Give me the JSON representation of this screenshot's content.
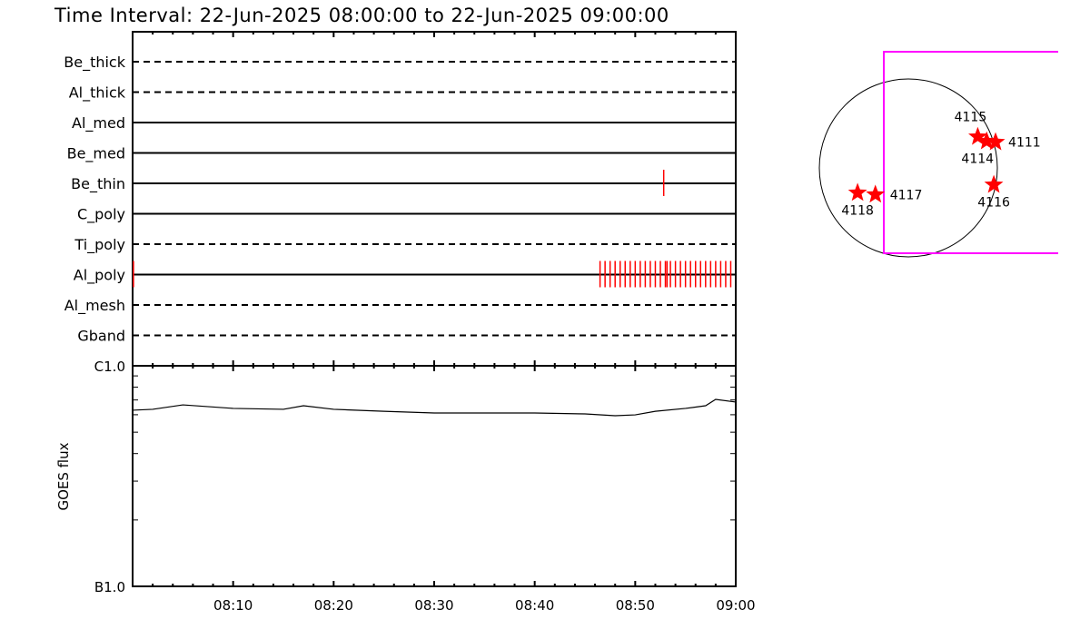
{
  "chart_data": [
    {
      "type": "timeline",
      "title": "Time Interval: 22-Jun-2025 08:00:00 to 22-Jun-2025 09:00:00",
      "rows": [
        {
          "name": "Be_thick",
          "style": "dashed",
          "events": []
        },
        {
          "name": "Al_thick",
          "style": "dashed",
          "events": []
        },
        {
          "name": "Al_med",
          "style": "solid",
          "events": []
        },
        {
          "name": "Be_med",
          "style": "solid",
          "events": []
        },
        {
          "name": "Be_thin",
          "style": "solid",
          "events": [
            "08:52:50"
          ]
        },
        {
          "name": "C_poly",
          "style": "solid",
          "events": []
        },
        {
          "name": "Ti_poly",
          "style": "dashed",
          "events": []
        },
        {
          "name": "Al_poly",
          "style": "solid",
          "events": [
            "08:00:05",
            "08:46:30",
            "08:47:00",
            "08:47:30",
            "08:48:00",
            "08:48:30",
            "08:49:00",
            "08:49:30",
            "08:50:00",
            "08:50:30",
            "08:51:00",
            "08:51:30",
            "08:52:00",
            "08:52:30",
            "08:53:00",
            "08:53:10",
            "08:53:30",
            "08:54:00",
            "08:54:30",
            "08:55:00",
            "08:55:30",
            "08:56:00",
            "08:56:30",
            "08:57:00",
            "08:57:30",
            "08:58:00",
            "08:58:30",
            "08:59:00",
            "08:59:30"
          ]
        },
        {
          "name": "Al_mesh",
          "style": "dashed",
          "events": []
        },
        {
          "name": "Gband",
          "style": "dashed",
          "events": []
        }
      ],
      "event_color": "#ff0000",
      "xlim": [
        "08:00",
        "09:00"
      ]
    },
    {
      "type": "line",
      "ylabel": "GOES flux",
      "yscale": "log",
      "ylim": [
        1e-07,
        1e-06
      ],
      "ytick_labels": [
        "B1.0",
        "C1.0"
      ],
      "xlim": [
        "08:00",
        "09:00"
      ],
      "xtick_labels": [
        "08:10",
        "08:20",
        "08:30",
        "08:40",
        "08:50",
        "09:00"
      ],
      "x": [
        "08:00",
        "08:02",
        "08:05",
        "08:10",
        "08:15",
        "08:17",
        "08:20",
        "08:25",
        "08:30",
        "08:35",
        "08:40",
        "08:45",
        "08:48",
        "08:50",
        "08:52",
        "08:55",
        "08:57",
        "08:58",
        "09:00"
      ],
      "y": [
        6.29e-07,
        6.35e-07,
        6.65e-07,
        6.41e-07,
        6.35e-07,
        6.59e-07,
        6.35e-07,
        6.22e-07,
        6.11e-07,
        6.11e-07,
        6.11e-07,
        6.05e-07,
        5.94e-07,
        5.99e-07,
        6.22e-07,
        6.41e-07,
        6.59e-07,
        7.04e-07,
        6.85e-07
      ]
    },
    {
      "type": "scatter",
      "description_kind": "solar disk map",
      "disk_color": "#000000",
      "fov_color": "#ff00ff",
      "marker_color": "#ff0000",
      "regions": [
        {
          "label": "4115",
          "lon_frac": 0.78,
          "lat_frac": 0.35
        },
        {
          "label": "4114",
          "lon_frac": 0.88,
          "lat_frac": 0.3
        },
        {
          "label": "4111",
          "lon_frac": 0.98,
          "lat_frac": 0.29
        },
        {
          "label": "4116",
          "lon_frac": 0.96,
          "lat_frac": -0.19
        },
        {
          "label": "4118",
          "lon_frac": -0.57,
          "lat_frac": -0.28
        },
        {
          "label": "4117",
          "lon_frac": -0.37,
          "lat_frac": -0.3
        }
      ]
    }
  ]
}
